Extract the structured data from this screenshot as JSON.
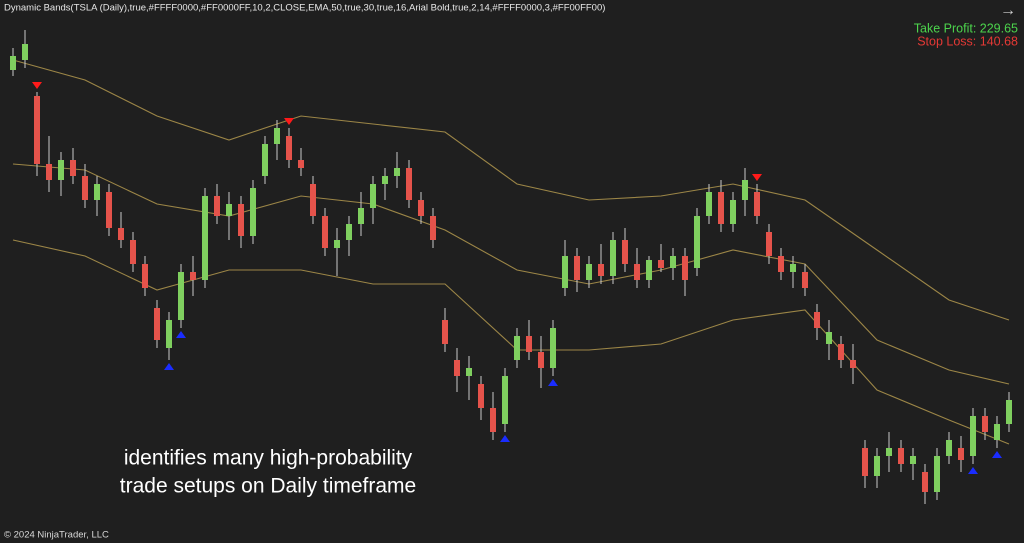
{
  "chart_data": {
    "type": "candlestick",
    "header": "Dynamic Bands(TSLA (Daily),true,#FFFF0000,#FF0000FF,10,2,CLOSE,EMA,50,true,30,true,16,Arial Bold,true,2,14,#FFFF0000,3,#FF00FF00)",
    "take_profit": "Take Profit: 229.65",
    "stop_loss": "Stop Loss: 140.68",
    "caption": [
      "identifies many high-probability",
      "trade setups on Daily timeframe"
    ],
    "footer": "© 2024 NinjaTrader, LLC",
    "ylim": [
      134.25,
      270
    ],
    "up_color": "#7fcf5f",
    "down_color": "#e5534b",
    "band_color": "#9c8647",
    "candles": [
      [
        252.5,
        258,
        251,
        256
      ],
      [
        255,
        262.5,
        253,
        259
      ],
      [
        246,
        247,
        226,
        229
      ],
      [
        229,
        236,
        222,
        225
      ],
      [
        225,
        232,
        221,
        230
      ],
      [
        230,
        233,
        224,
        226
      ],
      [
        226,
        229,
        218,
        220
      ],
      [
        220,
        226,
        216,
        224
      ],
      [
        222,
        224,
        211,
        213
      ],
      [
        213,
        217,
        208,
        210
      ],
      [
        210,
        212,
        202,
        204
      ],
      [
        204,
        206,
        196,
        198
      ],
      [
        193,
        195,
        183,
        185
      ],
      [
        183,
        192,
        180,
        190
      ],
      [
        190,
        204,
        188,
        202
      ],
      [
        202,
        206,
        196,
        200
      ],
      [
        200,
        223,
        198,
        221
      ],
      [
        221,
        224,
        214,
        216
      ],
      [
        216,
        222,
        210,
        219
      ],
      [
        219,
        221,
        208,
        211
      ],
      [
        211,
        225,
        209,
        223
      ],
      [
        226,
        236,
        224,
        234
      ],
      [
        234,
        240,
        230,
        238
      ],
      [
        236,
        238,
        228,
        230
      ],
      [
        230,
        233,
        226,
        228
      ],
      [
        224,
        226,
        214,
        216
      ],
      [
        216,
        218,
        206,
        208
      ],
      [
        208,
        213,
        201,
        210
      ],
      [
        210,
        216,
        206,
        214
      ],
      [
        214,
        222,
        211,
        218
      ],
      [
        218,
        226,
        214,
        224
      ],
      [
        224,
        228,
        220,
        226
      ],
      [
        226,
        232,
        223,
        228
      ],
      [
        228,
        230,
        218,
        220
      ],
      [
        220,
        222,
        214,
        216
      ],
      [
        216,
        218,
        208,
        210
      ],
      [
        190,
        193,
        182,
        184
      ],
      [
        180,
        183,
        172,
        176
      ],
      [
        176,
        181,
        170,
        178
      ],
      [
        174,
        176,
        165,
        168
      ],
      [
        168,
        172,
        160,
        162
      ],
      [
        164,
        178,
        162,
        176
      ],
      [
        180,
        188,
        178,
        186
      ],
      [
        186,
        190,
        180,
        182
      ],
      [
        182,
        186,
        173,
        178
      ],
      [
        178,
        190,
        176,
        188
      ],
      [
        198,
        210,
        196,
        206
      ],
      [
        206,
        208,
        197,
        200
      ],
      [
        200,
        206,
        198,
        204
      ],
      [
        204,
        209,
        199,
        201
      ],
      [
        201,
        212,
        199,
        210
      ],
      [
        210,
        213,
        202,
        204
      ],
      [
        204,
        208,
        198,
        200
      ],
      [
        200,
        206,
        198,
        205
      ],
      [
        205,
        209,
        202,
        203
      ],
      [
        203,
        208,
        200,
        206
      ],
      [
        206,
        208,
        196,
        200
      ],
      [
        203,
        218,
        201,
        216
      ],
      [
        216,
        224,
        214,
        222
      ],
      [
        222,
        225,
        212,
        214
      ],
      [
        214,
        222,
        212,
        220
      ],
      [
        220,
        228,
        216,
        225
      ],
      [
        222,
        224,
        214,
        216
      ],
      [
        212,
        214,
        204,
        206
      ],
      [
        206,
        208,
        200,
        202
      ],
      [
        202,
        206,
        198,
        204
      ],
      [
        202,
        204,
        196,
        198
      ],
      [
        192,
        194,
        185,
        188
      ],
      [
        184,
        190,
        180,
        187
      ],
      [
        184,
        186,
        178,
        180
      ],
      [
        180,
        184,
        174,
        178
      ],
      [
        158,
        160,
        148,
        151
      ],
      [
        151,
        158,
        148,
        156
      ],
      [
        156,
        162,
        152,
        158
      ],
      [
        158,
        160,
        152,
        154
      ],
      [
        154,
        158,
        150,
        156
      ],
      [
        152,
        154,
        144,
        147
      ],
      [
        147,
        158,
        145,
        156
      ],
      [
        156,
        162,
        154,
        160
      ],
      [
        158,
        161,
        152,
        155
      ],
      [
        156,
        168,
        154,
        166
      ],
      [
        166,
        168,
        160,
        162
      ],
      [
        160,
        166,
        158,
        164
      ],
      [
        164,
        172,
        162,
        170
      ]
    ],
    "band_x": [
      0,
      6,
      12,
      18,
      24,
      30,
      36,
      42,
      48,
      54,
      60,
      66,
      72,
      78,
      83
    ],
    "bands": [
      {
        "name": "upper",
        "values": [
          255,
          250,
          241,
          235,
          241,
          239,
          237,
          224,
          220,
          221,
          224,
          220,
          207.5,
          195,
          190
        ]
      },
      {
        "name": "middle",
        "values": [
          229,
          227.5,
          219,
          216,
          221,
          219,
          212.5,
          202.5,
          199,
          202.5,
          207.5,
          204,
          185,
          177.5,
          174
        ]
      },
      {
        "name": "lower",
        "values": [
          210,
          206,
          197.5,
          202.5,
          202.5,
          199,
          199,
          182.5,
          182.5,
          184,
          190,
          192.5,
          172.5,
          165,
          159
        ]
      }
    ],
    "sell_signals": [
      2,
      23,
      62
    ],
    "buy_signals": [
      13,
      14,
      41,
      45,
      80,
      82
    ]
  }
}
